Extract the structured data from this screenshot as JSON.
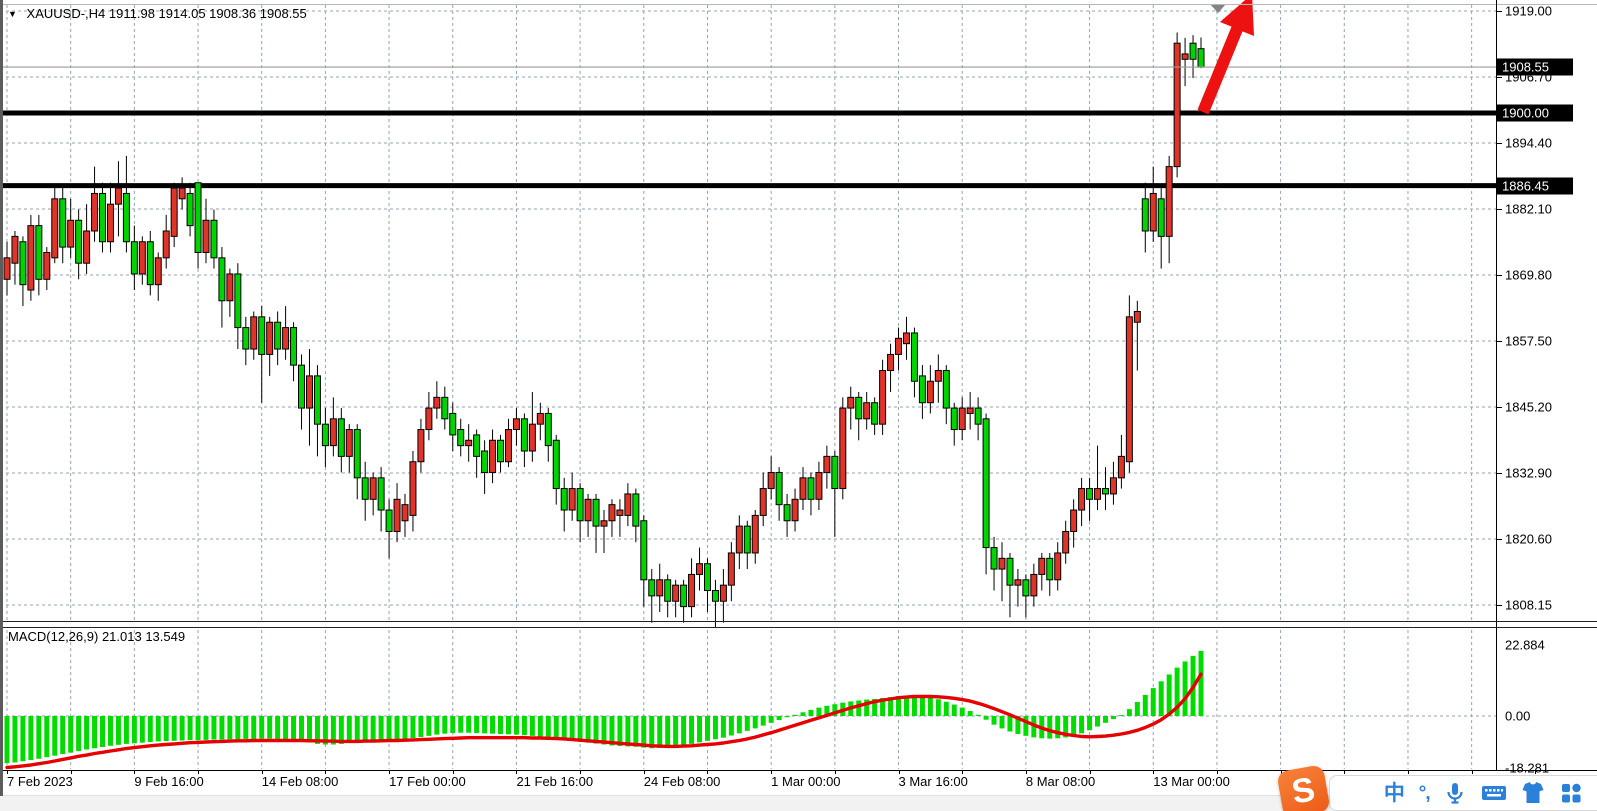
{
  "window": {
    "title_triangle": "▼",
    "symbol_period": "XAUUSD-,H4",
    "ohlc_text": "1911.98 1914.05 1908.36 1908.55"
  },
  "price_axis": {
    "labels": [
      "1919.00",
      "1906.70",
      "1894.40",
      "1882.10",
      "1869.80",
      "1857.50",
      "1845.20",
      "1832.90",
      "1820.60",
      "1808.15"
    ],
    "badges": [
      {
        "text": "1908.55",
        "price": 1908.55
      },
      {
        "text": "1900.00",
        "price": 1900.0
      },
      {
        "text": "1886.45",
        "price": 1886.45
      }
    ]
  },
  "time_axis": {
    "labels": [
      {
        "text": "7 Feb 2023",
        "grid_index": 0
      },
      {
        "text": "9 Feb 16:00",
        "grid_index": 2
      },
      {
        "text": "14 Feb 08:00",
        "grid_index": 4
      },
      {
        "text": "17 Feb 00:00",
        "grid_index": 6
      },
      {
        "text": "21 Feb 16:00",
        "grid_index": 8
      },
      {
        "text": "24 Feb 08:00",
        "grid_index": 10
      },
      {
        "text": "1 Mar 00:00",
        "grid_index": 12
      },
      {
        "text": "3 Mar 16:00",
        "grid_index": 14
      },
      {
        "text": "8 Mar 08:00",
        "grid_index": 16
      },
      {
        "text": "13 Mar 00:00",
        "grid_index": 18
      }
    ]
  },
  "macd_panel": {
    "label": "MACD(12,26,9)",
    "main_value": "21.013",
    "signal_value": "13.549",
    "axis_labels": [
      {
        "text": "22.884",
        "value": 22.884
      },
      {
        "text": "0.00",
        "value": 0.0
      },
      {
        "text": "-18.281",
        "value": -18.281
      }
    ]
  },
  "ime_toolbar": {
    "logo_text": "S",
    "lang_label": "中",
    "punct_label": "°,",
    "icons": [
      "microphone-icon",
      "keyboard-icon",
      "skin-icon",
      "menu-grid-icon"
    ]
  },
  "colors": {
    "bull": "#e03428",
    "bear": "#00d400",
    "wick": "#000000",
    "grid": "#93a6b5",
    "macd_hist": "#00dc00",
    "macd_signal": "#e60000",
    "hline": "#000000",
    "price_line": "#9a9a9a",
    "arrow": "#ee1111",
    "badge_bg": "#000000",
    "ime_blue": "#2b80d9",
    "ime_orange": "#ec5c17"
  },
  "chart_data": {
    "type": "candlestick+macd",
    "symbol": "XAUUSD-",
    "timeframe": "H4",
    "title": "XAUUSD-,H4 1911.98 1914.05 1908.36 1908.55",
    "x_range_labels": [
      "7 Feb 2023",
      "13 Mar 00:00"
    ],
    "price_ylim": [
      1805.3,
      1920.1
    ],
    "macd_ylim": [
      -18.281,
      22.884
    ],
    "grid": {
      "price_step": 12.3,
      "bars_per_gridline": 8,
      "gridlines_labeled_every": 2
    },
    "color_convention": "red = bullish (up), green = bearish (down)",
    "horizontal_lines": [
      1900.0,
      1886.45
    ],
    "current_price_line": 1908.55,
    "last_bar_ohlc": {
      "open": 1911.98,
      "high": 1914.05,
      "low": 1908.36,
      "close": 1908.55
    },
    "macd_last": {
      "histogram": 21.013,
      "signal": 13.549
    },
    "candles": [
      [
        1869,
        1876,
        1866,
        1873
      ],
      [
        1872,
        1878,
        1868,
        1877
      ],
      [
        1876,
        1877,
        1864,
        1868
      ],
      [
        1867,
        1881,
        1865,
        1879
      ],
      [
        1879,
        1881,
        1866,
        1869
      ],
      [
        1869,
        1875,
        1867,
        1874
      ],
      [
        1873,
        1886,
        1872,
        1884
      ],
      [
        1884,
        1886,
        1872,
        1875
      ],
      [
        1875,
        1884,
        1873,
        1880
      ],
      [
        1880,
        1882,
        1869,
        1872
      ],
      [
        1872,
        1883,
        1870,
        1878
      ],
      [
        1878,
        1890,
        1876,
        1885
      ],
      [
        1885,
        1887,
        1874,
        1876
      ],
      [
        1876,
        1887,
        1874,
        1883
      ],
      [
        1883,
        1891,
        1877,
        1886
      ],
      [
        1885,
        1892,
        1874,
        1876
      ],
      [
        1876,
        1879,
        1867,
        1870
      ],
      [
        1870,
        1877,
        1868,
        1876
      ],
      [
        1876,
        1878,
        1866,
        1868
      ],
      [
        1868,
        1874,
        1865,
        1873
      ],
      [
        1873,
        1881,
        1871,
        1878
      ],
      [
        1877,
        1887,
        1875,
        1886
      ],
      [
        1884,
        1888,
        1882,
        1886
      ],
      [
        1885,
        1887,
        1877,
        1879
      ],
      [
        1887,
        1887,
        1871,
        1874
      ],
      [
        1874,
        1884,
        1872,
        1880
      ],
      [
        1880,
        1882,
        1871,
        1873
      ],
      [
        1873,
        1875,
        1860,
        1865
      ],
      [
        1865,
        1871,
        1862,
        1870
      ],
      [
        1870,
        1872,
        1856,
        1860
      ],
      [
        1860,
        1862,
        1853,
        1856
      ],
      [
        1856,
        1863,
        1854,
        1862
      ],
      [
        1862,
        1864,
        1846,
        1855
      ],
      [
        1855,
        1862,
        1851,
        1861
      ],
      [
        1861,
        1863,
        1853,
        1856
      ],
      [
        1856,
        1864,
        1854,
        1860
      ],
      [
        1860,
        1861,
        1850,
        1853
      ],
      [
        1853,
        1855,
        1841,
        1845
      ],
      [
        1845,
        1856,
        1838,
        1851
      ],
      [
        1851,
        1853,
        1836,
        1842
      ],
      [
        1842,
        1845,
        1834,
        1838
      ],
      [
        1838,
        1847,
        1836,
        1843
      ],
      [
        1843,
        1845,
        1833,
        1836
      ],
      [
        1836,
        1842,
        1833,
        1841
      ],
      [
        1841,
        1842,
        1828,
        1832
      ],
      [
        1832,
        1835,
        1824,
        1828
      ],
      [
        1828,
        1833,
        1825,
        1832
      ],
      [
        1832,
        1834,
        1822,
        1826
      ],
      [
        1826,
        1828,
        1817,
        1822
      ],
      [
        1822,
        1831,
        1820,
        1828
      ],
      [
        1824,
        1829,
        1821,
        1827
      ],
      [
        1825,
        1837,
        1822,
        1835
      ],
      [
        1835,
        1843,
        1833,
        1841
      ],
      [
        1841,
        1848,
        1839,
        1845
      ],
      [
        1845,
        1850,
        1843,
        1847
      ],
      [
        1847,
        1849,
        1841,
        1843
      ],
      [
        1844,
        1846,
        1837,
        1840
      ],
      [
        1841,
        1843,
        1836,
        1838
      ],
      [
        1838,
        1842,
        1835,
        1839
      ],
      [
        1840,
        1841,
        1832,
        1836
      ],
      [
        1837,
        1839,
        1829,
        1833
      ],
      [
        1833,
        1841,
        1831,
        1839
      ],
      [
        1839,
        1840,
        1833,
        1835
      ],
      [
        1835,
        1843,
        1834,
        1841
      ],
      [
        1841,
        1845,
        1838,
        1843
      ],
      [
        1843,
        1844,
        1834,
        1837
      ],
      [
        1837,
        1848,
        1835,
        1842
      ],
      [
        1842,
        1846,
        1839,
        1844
      ],
      [
        1844,
        1845,
        1835,
        1838
      ],
      [
        1839,
        1840,
        1827,
        1830
      ],
      [
        1830,
        1832,
        1822,
        1826
      ],
      [
        1826,
        1833,
        1824,
        1830
      ],
      [
        1830,
        1831,
        1820,
        1824
      ],
      [
        1824,
        1829,
        1821,
        1828
      ],
      [
        1828,
        1829,
        1818,
        1823
      ],
      [
        1823,
        1826,
        1818,
        1824
      ],
      [
        1824,
        1828,
        1821,
        1827
      ],
      [
        1825,
        1828,
        1821,
        1826
      ],
      [
        1825,
        1831,
        1823,
        1829
      ],
      [
        1829,
        1830,
        1820,
        1823
      ],
      [
        1824,
        1825,
        1808,
        1813
      ],
      [
        1813,
        1815,
        1805,
        1810
      ],
      [
        1810,
        1816,
        1807,
        1813
      ],
      [
        1813,
        1814,
        1806,
        1809
      ],
      [
        1809,
        1813,
        1806,
        1812
      ],
      [
        1812,
        1813,
        1805,
        1808
      ],
      [
        1808,
        1817,
        1806,
        1814
      ],
      [
        1814,
        1819,
        1811,
        1816
      ],
      [
        1816,
        1817,
        1807,
        1811
      ],
      [
        1811,
        1813,
        1804,
        1809
      ],
      [
        1809,
        1815,
        1805,
        1812
      ],
      [
        1812,
        1820,
        1809,
        1818
      ],
      [
        1818,
        1825,
        1815,
        1823
      ],
      [
        1823,
        1824,
        1815,
        1818
      ],
      [
        1818,
        1826,
        1816,
        1825
      ],
      [
        1825,
        1833,
        1823,
        1830
      ],
      [
        1830,
        1836,
        1828,
        1833
      ],
      [
        1833,
        1834,
        1824,
        1827
      ],
      [
        1827,
        1829,
        1821,
        1824
      ],
      [
        1824,
        1830,
        1822,
        1828
      ],
      [
        1828,
        1834,
        1826,
        1832
      ],
      [
        1832,
        1833,
        1825,
        1828
      ],
      [
        1828,
        1835,
        1826,
        1833
      ],
      [
        1833,
        1838,
        1830,
        1836
      ],
      [
        1836,
        1837,
        1821,
        1830
      ],
      [
        1830,
        1847,
        1828,
        1845
      ],
      [
        1845,
        1849,
        1841,
        1847
      ],
      [
        1847,
        1848,
        1839,
        1843
      ],
      [
        1843,
        1848,
        1841,
        1846
      ],
      [
        1846,
        1847,
        1840,
        1842
      ],
      [
        1842,
        1854,
        1840,
        1852
      ],
      [
        1852,
        1857,
        1848,
        1855
      ],
      [
        1855,
        1860,
        1852,
        1858
      ],
      [
        1857,
        1862,
        1854,
        1859
      ],
      [
        1859,
        1860,
        1847,
        1850
      ],
      [
        1851,
        1853,
        1843,
        1846
      ],
      [
        1846,
        1853,
        1844,
        1850
      ],
      [
        1850,
        1855,
        1846,
        1852
      ],
      [
        1852,
        1853,
        1842,
        1845
      ],
      [
        1845,
        1846,
        1838,
        1841
      ],
      [
        1841,
        1847,
        1839,
        1845
      ],
      [
        1844,
        1848,
        1841,
        1845
      ],
      [
        1845,
        1847,
        1839,
        1842
      ],
      [
        1843,
        1844,
        1814,
        1819
      ],
      [
        1819,
        1821,
        1811,
        1815
      ],
      [
        1815,
        1820,
        1809,
        1817
      ],
      [
        1817,
        1818,
        1806,
        1812
      ],
      [
        1812,
        1815,
        1808,
        1813
      ],
      [
        1813,
        1814,
        1806,
        1810
      ],
      [
        1810,
        1816,
        1808,
        1814
      ],
      [
        1814,
        1818,
        1811,
        1817
      ],
      [
        1817,
        1818,
        1810,
        1813
      ],
      [
        1813,
        1820,
        1811,
        1818
      ],
      [
        1818,
        1824,
        1816,
        1822
      ],
      [
        1822,
        1828,
        1819,
        1826
      ],
      [
        1826,
        1832,
        1823,
        1830
      ],
      [
        1830,
        1832,
        1824,
        1828
      ],
      [
        1828,
        1838,
        1826,
        1830
      ],
      [
        1830,
        1834,
        1826,
        1829
      ],
      [
        1829,
        1835,
        1827,
        1832
      ],
      [
        1832,
        1840,
        1830,
        1836
      ],
      [
        1835,
        1866,
        1833,
        1862
      ],
      [
        1861,
        1865,
        1852,
        1863
      ],
      [
        1884,
        1887,
        1874,
        1878
      ],
      [
        1878,
        1890,
        1876,
        1885
      ],
      [
        1884,
        1886,
        1871,
        1877
      ],
      [
        1877,
        1892,
        1872,
        1890
      ],
      [
        1890,
        1915,
        1888,
        1913
      ],
      [
        1910,
        1914,
        1905,
        1911
      ],
      [
        1913,
        1914.5,
        1906.5,
        1910
      ],
      [
        1911.98,
        1914.05,
        1908.36,
        1908.55
      ]
    ],
    "macd_histogram": [
      -15.2,
      -15.0,
      -14.6,
      -14.2,
      -13.8,
      -13.3,
      -12.8,
      -12.3,
      -11.8,
      -11.3,
      -10.8,
      -10.4,
      -10.0,
      -9.6,
      -9.3,
      -9.0,
      -8.8,
      -8.6,
      -8.4,
      -8.2,
      -8.1,
      -8.0,
      -7.9,
      -7.8,
      -7.8,
      -7.7,
      -7.6,
      -7.6,
      -7.5,
      -7.5,
      -7.4,
      -7.4,
      -7.3,
      -7.3,
      -7.4,
      -7.5,
      -7.7,
      -8.0,
      -8.5,
      -9.0,
      -9.2,
      -9.2,
      -9.0,
      -8.7,
      -8.4,
      -8.2,
      -8.0,
      -7.9,
      -7.8,
      -7.6,
      -7.4,
      -7.1,
      -6.8,
      -6.4,
      -6.0,
      -5.7,
      -5.5,
      -5.4,
      -5.4,
      -5.5,
      -5.6,
      -5.7,
      -5.8,
      -5.9,
      -6.0,
      -6.2,
      -6.4,
      -6.6,
      -6.9,
      -7.3,
      -7.7,
      -8.0,
      -8.3,
      -8.6,
      -8.9,
      -9.2,
      -9.5,
      -9.7,
      -9.8,
      -9.9,
      -10.2,
      -10.4,
      -10.3,
      -10.1,
      -9.8,
      -9.4,
      -9.0,
      -8.5,
      -8.0,
      -7.5,
      -7.0,
      -6.3,
      -5.6,
      -4.8,
      -4.0,
      -3.1,
      -2.2,
      -1.3,
      -0.4,
      0.4,
      1.2,
      2.0,
      2.7,
      3.3,
      3.8,
      4.3,
      4.7,
      5.0,
      5.3,
      5.5,
      5.8,
      6.1,
      6.4,
      6.6,
      6.6,
      6.4,
      6.0,
      5.4,
      4.6,
      3.7,
      2.7,
      1.6,
      0.4,
      -1.2,
      -2.8,
      -4.0,
      -5.0,
      -5.8,
      -6.4,
      -6.9,
      -7.2,
      -7.3,
      -7.2,
      -6.9,
      -6.4,
      -5.6,
      -4.6,
      -3.4,
      -2.2,
      -1.0,
      0.3,
      2.2,
      4.5,
      6.8,
      9.0,
      11.2,
      13.4,
      15.6,
      17.6,
      19.4,
      21.0
    ],
    "macd_signal": [
      -16.6,
      -16.4,
      -16.1,
      -15.8,
      -15.4,
      -15.0,
      -14.5,
      -14.0,
      -13.5,
      -13.0,
      -12.6,
      -12.1,
      -11.7,
      -11.3,
      -10.9,
      -10.5,
      -10.2,
      -9.9,
      -9.6,
      -9.4,
      -9.2,
      -9.0,
      -8.8,
      -8.6,
      -8.5,
      -8.4,
      -8.3,
      -8.2,
      -8.1,
      -8.0,
      -8.0,
      -7.9,
      -7.9,
      -7.9,
      -7.9,
      -7.9,
      -7.9,
      -7.9,
      -8.0,
      -8.0,
      -8.1,
      -8.1,
      -8.2,
      -8.2,
      -8.2,
      -8.1,
      -8.1,
      -8.0,
      -7.9,
      -7.9,
      -7.8,
      -7.7,
      -7.6,
      -7.5,
      -7.4,
      -7.3,
      -7.2,
      -7.1,
      -7.0,
      -7.0,
      -7.0,
      -7.0,
      -7.0,
      -7.0,
      -7.0,
      -7.0,
      -7.1,
      -7.1,
      -7.2,
      -7.3,
      -7.4,
      -7.6,
      -7.8,
      -8.0,
      -8.2,
      -8.4,
      -8.6,
      -8.8,
      -9.0,
      -9.2,
      -9.4,
      -9.6,
      -9.7,
      -9.8,
      -9.8,
      -9.7,
      -9.6,
      -9.4,
      -9.2,
      -9.0,
      -8.7,
      -8.3,
      -7.9,
      -7.4,
      -6.8,
      -6.1,
      -5.4,
      -4.6,
      -3.8,
      -3.0,
      -2.2,
      -1.4,
      -0.6,
      0.2,
      1.0,
      1.8,
      2.6,
      3.3,
      4.0,
      4.6,
      5.1,
      5.5,
      5.9,
      6.1,
      6.3,
      6.3,
      6.3,
      6.2,
      6.0,
      5.7,
      5.3,
      4.8,
      4.1,
      3.3,
      2.4,
      1.4,
      0.4,
      -0.7,
      -1.8,
      -2.9,
      -3.9,
      -4.7,
      -5.4,
      -5.9,
      -6.3,
      -6.6,
      -6.7,
      -6.6,
      -6.5,
      -6.2,
      -5.8,
      -5.3,
      -4.6,
      -3.7,
      -2.6,
      -1.2,
      0.6,
      2.8,
      5.6,
      9.2,
      13.5
    ]
  }
}
